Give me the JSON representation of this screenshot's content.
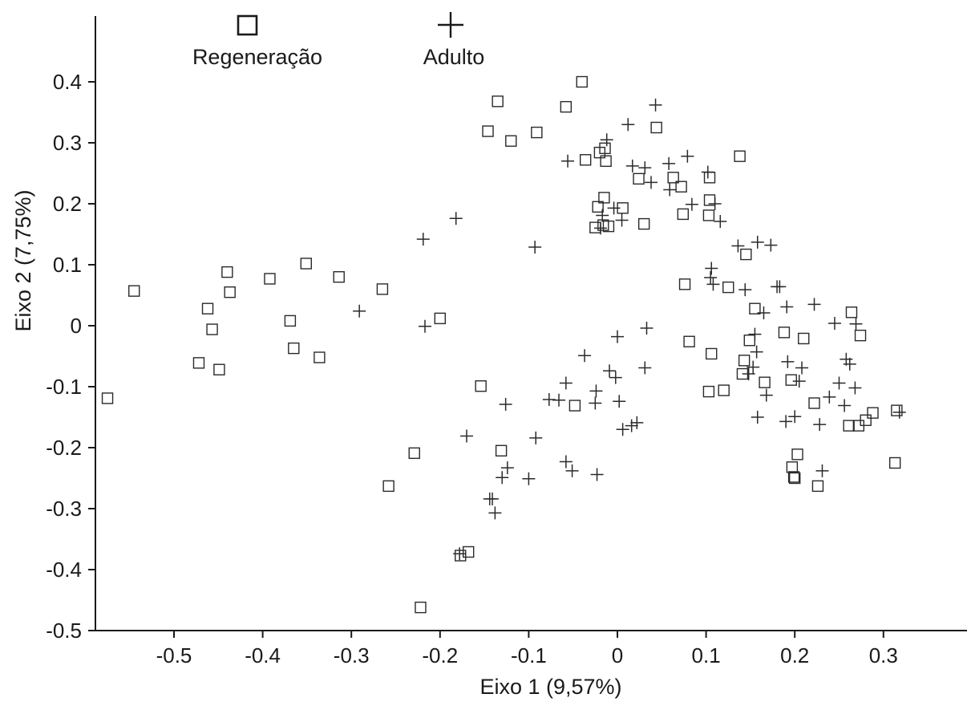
{
  "chart_data": {
    "type": "scatter",
    "xlabel": "Eixo 1 (9,57%)",
    "ylabel": "Eixo 2 (7,75%)",
    "xlim": [
      -0.6,
      0.39
    ],
    "ylim": [
      -0.5,
      0.5
    ],
    "xticks": [
      -0.5,
      -0.4,
      -0.3,
      -0.2,
      -0.1,
      0,
      0.1,
      0.2,
      0.3
    ],
    "xtick_labels": [
      "-0.5",
      "-0.4",
      "-0.3",
      "-0.2",
      "-0.1",
      "0",
      "0.1",
      "0.2",
      "0.3"
    ],
    "yticks": [
      0.4,
      0.3,
      0.2,
      0.1,
      0,
      -0.1,
      -0.2,
      -0.3,
      -0.4,
      -0.5
    ],
    "ytick_labels": [
      "0.4",
      "0.3",
      "0.2",
      "0.1",
      "0",
      "-0.1",
      "-0.2",
      "-0.3",
      "-0.4",
      "-0.5"
    ],
    "grid": false,
    "legend_position": "top-left",
    "series": [
      {
        "name": "Regeneração",
        "marker": "square",
        "points": [
          [
            -0.575,
            -0.119
          ],
          [
            -0.545,
            0.057
          ],
          [
            -0.472,
            -0.061
          ],
          [
            -0.462,
            0.028
          ],
          [
            -0.457,
            -0.006
          ],
          [
            -0.449,
            -0.072
          ],
          [
            -0.44,
            0.088
          ],
          [
            -0.437,
            0.055
          ],
          [
            -0.392,
            0.077
          ],
          [
            -0.369,
            0.008
          ],
          [
            -0.365,
            -0.037
          ],
          [
            -0.351,
            0.102
          ],
          [
            -0.336,
            -0.052
          ],
          [
            -0.314,
            0.08
          ],
          [
            -0.265,
            0.06
          ],
          [
            -0.258,
            -0.263
          ],
          [
            -0.229,
            -0.209
          ],
          [
            -0.222,
            -0.462
          ],
          [
            -0.2,
            0.012
          ],
          [
            -0.177,
            -0.377
          ],
          [
            -0.168,
            -0.371
          ],
          [
            -0.154,
            -0.099
          ],
          [
            -0.146,
            0.319
          ],
          [
            -0.135,
            0.368
          ],
          [
            -0.131,
            -0.205
          ],
          [
            -0.12,
            0.303
          ],
          [
            -0.091,
            0.317
          ],
          [
            -0.058,
            0.359
          ],
          [
            -0.048,
            -0.131
          ],
          [
            -0.04,
            0.4
          ],
          [
            -0.036,
            0.272
          ],
          [
            -0.025,
            0.161
          ],
          [
            -0.022,
            0.195
          ],
          [
            -0.02,
            0.284
          ],
          [
            -0.016,
            0.165
          ],
          [
            -0.015,
            0.21
          ],
          [
            -0.014,
            0.291
          ],
          [
            -0.013,
            0.27
          ],
          [
            -0.01,
            0.163
          ],
          [
            0.006,
            0.193
          ],
          [
            0.024,
            0.241
          ],
          [
            0.03,
            0.167
          ],
          [
            0.044,
            0.325
          ],
          [
            0.063,
            0.243
          ],
          [
            0.072,
            0.228
          ],
          [
            0.074,
            0.183
          ],
          [
            0.076,
            0.068
          ],
          [
            0.081,
            -0.026
          ],
          [
            0.103,
            -0.108
          ],
          [
            0.103,
            0.181
          ],
          [
            0.104,
            0.206
          ],
          [
            0.104,
            0.243
          ],
          [
            0.106,
            -0.046
          ],
          [
            0.12,
            -0.106
          ],
          [
            0.125,
            0.063
          ],
          [
            0.138,
            0.278
          ],
          [
            0.141,
            -0.079
          ],
          [
            0.143,
            -0.057
          ],
          [
            0.145,
            0.117
          ],
          [
            0.149,
            -0.024
          ],
          [
            0.155,
            0.028
          ],
          [
            0.166,
            -0.093
          ],
          [
            0.188,
            -0.011
          ],
          [
            0.196,
            -0.089
          ],
          [
            0.197,
            -0.232
          ],
          [
            0.199,
            -0.248
          ],
          [
            0.2,
            -0.25
          ],
          [
            0.203,
            -0.211
          ],
          [
            0.21,
            -0.021
          ],
          [
            0.222,
            -0.127
          ],
          [
            0.226,
            -0.263
          ],
          [
            0.261,
            -0.164
          ],
          [
            0.264,
            0.022
          ],
          [
            0.272,
            -0.164
          ],
          [
            0.274,
            -0.016
          ],
          [
            0.28,
            -0.155
          ],
          [
            0.288,
            -0.143
          ],
          [
            0.313,
            -0.225
          ],
          [
            0.315,
            -0.139
          ]
        ]
      },
      {
        "name": "Adulto",
        "marker": "plus",
        "points": [
          [
            -0.291,
            0.024
          ],
          [
            -0.219,
            0.142
          ],
          [
            -0.217,
            -0.001
          ],
          [
            -0.182,
            0.176
          ],
          [
            -0.178,
            -0.374
          ],
          [
            -0.17,
            -0.181
          ],
          [
            -0.144,
            -0.284
          ],
          [
            -0.141,
            -0.284
          ],
          [
            -0.138,
            -0.307
          ],
          [
            -0.13,
            -0.249
          ],
          [
            -0.126,
            -0.129
          ],
          [
            -0.124,
            -0.233
          ],
          [
            -0.1,
            -0.251
          ],
          [
            -0.092,
            -0.184
          ],
          [
            -0.093,
            0.129
          ],
          [
            -0.077,
            -0.121
          ],
          [
            -0.066,
            -0.122
          ],
          [
            -0.056,
            0.27
          ],
          [
            -0.058,
            -0.223
          ],
          [
            -0.058,
            -0.094
          ],
          [
            -0.051,
            -0.238
          ],
          [
            -0.037,
            -0.049
          ],
          [
            -0.023,
            -0.244
          ],
          [
            -0.025,
            -0.127
          ],
          [
            -0.024,
            -0.107
          ],
          [
            -0.017,
            0.181
          ],
          [
            -0.019,
            0.16
          ],
          [
            -0.012,
            0.305
          ],
          [
            -0.009,
            -0.074
          ],
          [
            -0.004,
            0.193
          ],
          [
            -0.002,
            -0.085
          ],
          [
            0.0,
            -0.018
          ],
          [
            0.002,
            -0.124
          ],
          [
            0.005,
            0.173
          ],
          [
            0.006,
            -0.17
          ],
          [
            0.012,
            0.33
          ],
          [
            0.016,
            -0.164
          ],
          [
            0.017,
            0.262
          ],
          [
            0.022,
            -0.159
          ],
          [
            0.031,
            0.259
          ],
          [
            0.031,
            -0.069
          ],
          [
            0.033,
            -0.004
          ],
          [
            0.038,
            0.235
          ],
          [
            0.043,
            0.362
          ],
          [
            0.059,
            0.223
          ],
          [
            0.058,
            0.266
          ],
          [
            0.079,
            0.278
          ],
          [
            0.084,
            0.199
          ],
          [
            0.102,
            0.252
          ],
          [
            0.106,
            0.094
          ],
          [
            0.105,
            0.079
          ],
          [
            0.108,
            0.068
          ],
          [
            0.11,
            0.2
          ],
          [
            0.116,
            0.171
          ],
          [
            0.136,
            0.131
          ],
          [
            0.144,
            0.059
          ],
          [
            0.148,
            -0.079
          ],
          [
            0.153,
            -0.068
          ],
          [
            0.155,
            -0.014
          ],
          [
            0.157,
            -0.043
          ],
          [
            0.158,
            -0.15
          ],
          [
            0.158,
            0.137
          ],
          [
            0.165,
            0.021
          ],
          [
            0.168,
            -0.114
          ],
          [
            0.173,
            0.132
          ],
          [
            0.18,
            0.064
          ],
          [
            0.183,
            0.064
          ],
          [
            0.19,
            -0.157
          ],
          [
            0.191,
            0.031
          ],
          [
            0.192,
            -0.059
          ],
          [
            0.2,
            -0.149
          ],
          [
            0.205,
            -0.091
          ],
          [
            0.208,
            -0.069
          ],
          [
            0.222,
            0.035
          ],
          [
            0.228,
            -0.162
          ],
          [
            0.231,
            -0.238
          ],
          [
            0.239,
            -0.117
          ],
          [
            0.245,
            0.004
          ],
          [
            0.25,
            -0.094
          ],
          [
            0.256,
            -0.131
          ],
          [
            0.258,
            -0.055
          ],
          [
            0.262,
            -0.063
          ],
          [
            0.268,
            -0.102
          ],
          [
            0.269,
            0.003
          ],
          [
            0.318,
            -0.142
          ]
        ]
      }
    ]
  }
}
